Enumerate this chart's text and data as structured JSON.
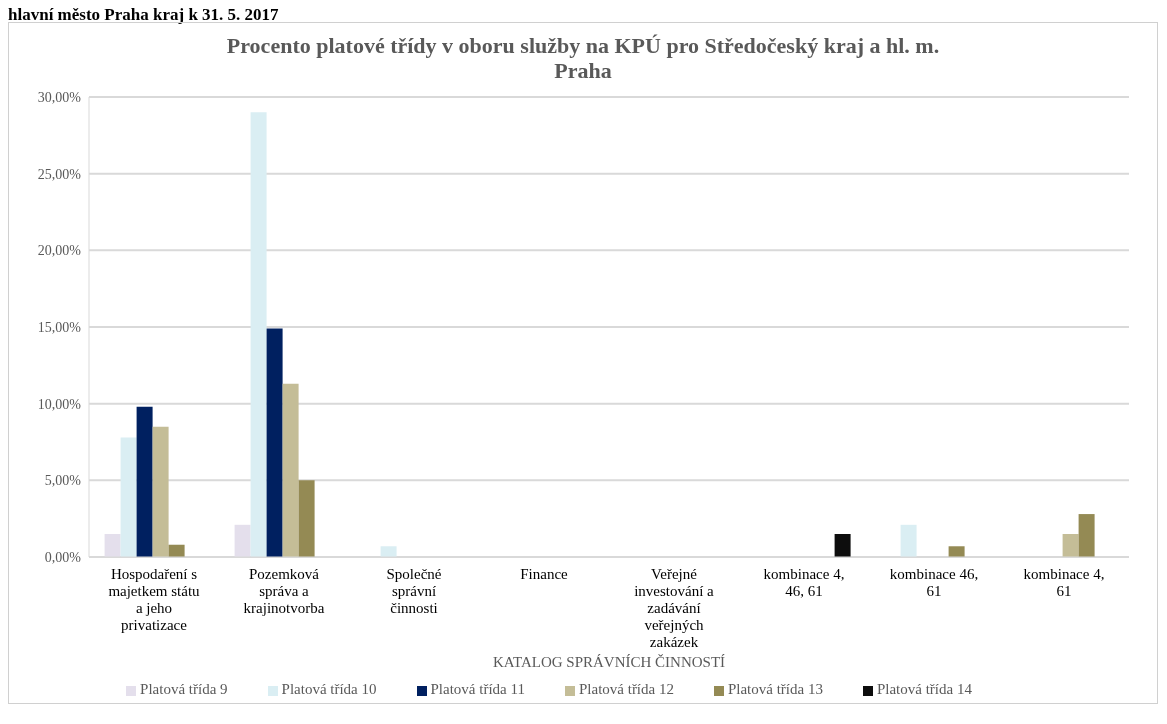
{
  "chart_data": {
    "type": "bar",
    "title": "Procento platové třídy v oboru služby na KPÚ pro Středočeský kraj a hl. m. Praha",
    "xlabel": "KATALOG SPRÁVNÍCH ČINNOSTÍ",
    "annotations": [
      "hlavní město Praha kraj k 31. 5. 2017"
    ],
    "categories": [
      "Hospodaření s majetkem státu a jeho privatizace",
      "Pozemková správa a krajinotvorba",
      "Společné správní činnosti",
      "Finance",
      "Veřejné investování a zadávání veřejných zakázek",
      "kombinace 4, 46, 61",
      "kombinace 46, 61",
      "kombinace 4, 61"
    ],
    "series": [
      {
        "name": "Platová třída 9",
        "color": "#e4dfec",
        "values": [
          1.5,
          2.1,
          0,
          0,
          0,
          0,
          0,
          0
        ]
      },
      {
        "name": "Platová třída 10",
        "color": "#daeef3",
        "values": [
          7.8,
          29.0,
          0.7,
          0,
          0,
          0,
          2.1,
          0
        ]
      },
      {
        "name": "Platová třída 11",
        "color": "#002060",
        "values": [
          9.8,
          14.9,
          0,
          0,
          0,
          0,
          0,
          0
        ]
      },
      {
        "name": "Platová třída 12",
        "color": "#c4bd97",
        "values": [
          8.5,
          11.3,
          0,
          0,
          0,
          0,
          0,
          1.5
        ]
      },
      {
        "name": "Platová třída 13",
        "color": "#948a54",
        "values": [
          0.8,
          5.0,
          0,
          0,
          0,
          0,
          0.7,
          2.8
        ]
      },
      {
        "name": "Platová třída 14",
        "color": "#0d0d0d",
        "values": [
          0,
          0,
          0,
          0,
          0,
          1.5,
          0,
          0
        ]
      }
    ],
    "ylim": [
      0,
      30
    ],
    "yticks": [
      {
        "value": 0,
        "label": "0,00%"
      },
      {
        "value": 5,
        "label": "5,00%"
      },
      {
        "value": 10,
        "label": "10,00%"
      },
      {
        "value": 15,
        "label": "15,00%"
      },
      {
        "value": 20,
        "label": "20,00%"
      },
      {
        "value": 25,
        "label": "25,00%"
      },
      {
        "value": 30,
        "label": "30,00%"
      }
    ],
    "grid": "y",
    "legend": "bottom"
  }
}
